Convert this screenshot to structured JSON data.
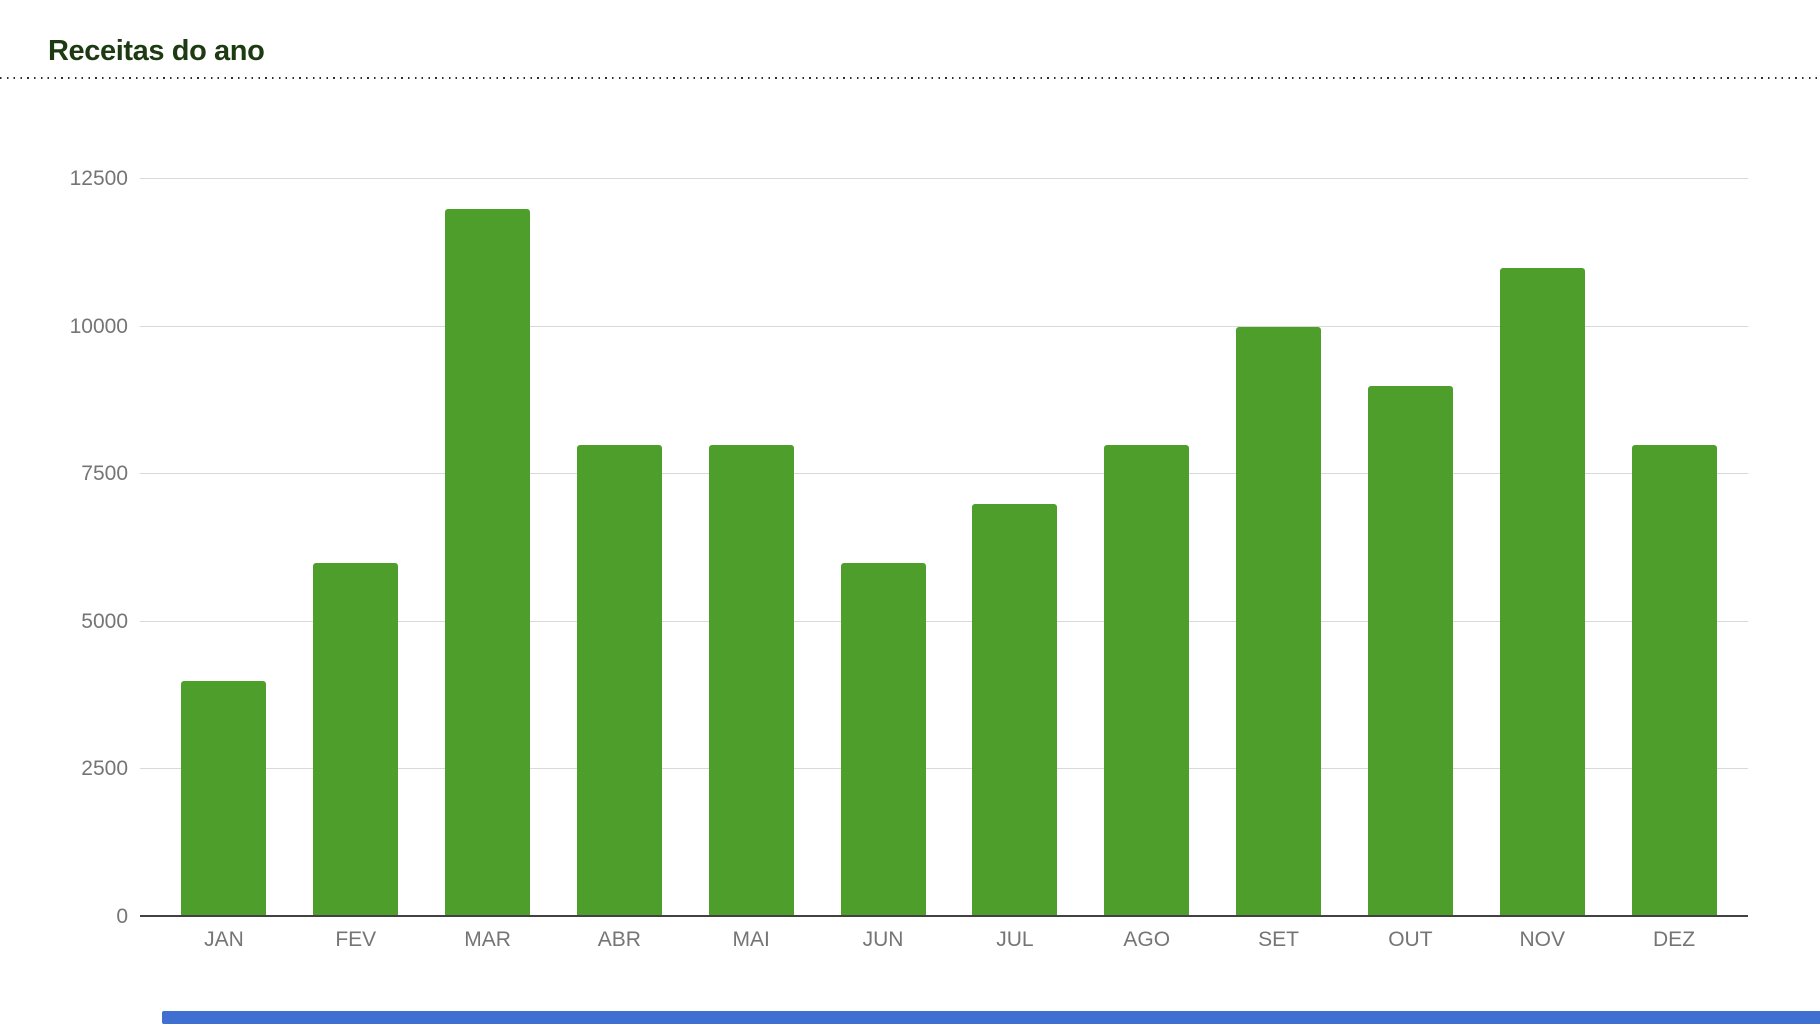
{
  "header": {
    "title": "Receitas do ano",
    "title_color": "#1d3a12"
  },
  "chart_data": {
    "type": "bar",
    "title": "Receitas do ano",
    "categories": [
      "JAN",
      "FEV",
      "MAR",
      "ABR",
      "MAI",
      "JUN",
      "JUL",
      "AGO",
      "SET",
      "OUT",
      "NOV",
      "DEZ"
    ],
    "values": [
      4000,
      6000,
      12000,
      8000,
      8000,
      6000,
      7000,
      8000,
      10000,
      9000,
      11000,
      8000
    ],
    "y_ticks": [
      0,
      2500,
      5000,
      7500,
      10000,
      12500
    ],
    "ylim": [
      0,
      12500
    ],
    "xlabel": "",
    "ylabel": "",
    "grid": true,
    "legend_position": "none",
    "bar_color": "#4d9e2b",
    "grid_color": "#d9d9d9",
    "zero_axis_color": "#424242",
    "axis_text_color": "#757575"
  },
  "scrollbar": {
    "color": "#3e6fd1"
  }
}
